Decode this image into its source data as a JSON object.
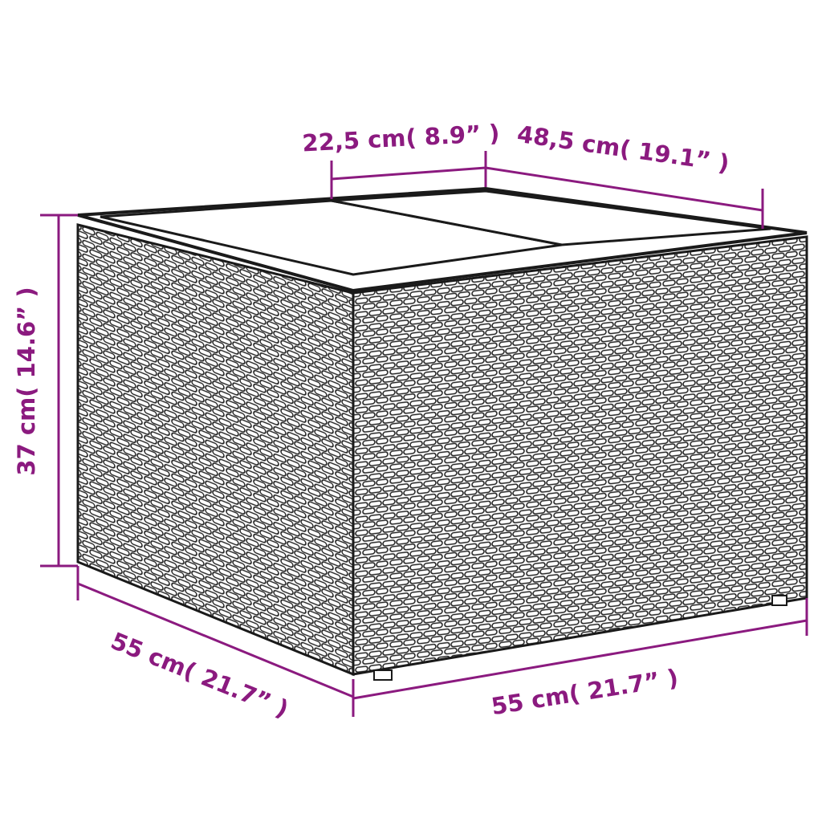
{
  "colors": {
    "dimension": "#8b1a7f",
    "outline": "#1a1a1a",
    "background": "#ffffff"
  },
  "dimensions": {
    "top_segment": "22,5 cm( 8.9” )",
    "top_depth": "48,5 cm( 19.1” )",
    "height": "37 cm( 14.6” )",
    "bottom_left_depth": "55 cm( 21.7” )",
    "bottom_width": "55 cm( 21.7” )"
  }
}
